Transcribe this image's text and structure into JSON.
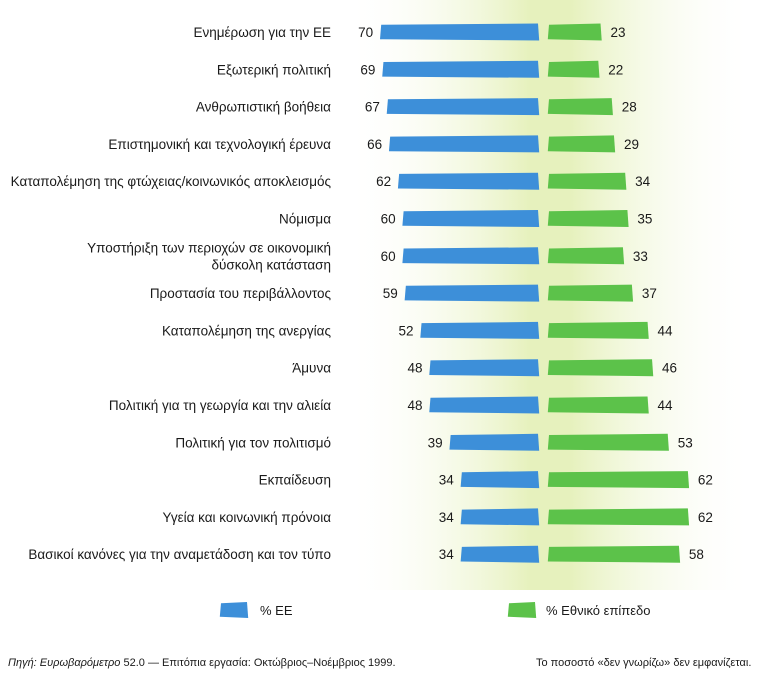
{
  "chart_data": {
    "type": "bar",
    "orientation": "horizontal",
    "layout": "diverging",
    "categories": [
      [
        "Ενημέρωση για την ΕΕ"
      ],
      [
        "Εξωτερική πολιτική"
      ],
      [
        "Ανθρωπιστική βοήθεια"
      ],
      [
        "Επιστημονική και τεχνολογική έρευνα"
      ],
      [
        "Καταπολέμηση της φτώχειας/κοινωνικός αποκλεισμός"
      ],
      [
        "Νόμισμα"
      ],
      [
        "Υποστήριξη των περιοχών σε οικονομική",
        "δύσκολη κατάσταση"
      ],
      [
        "Προστασία του περιβάλλοντος"
      ],
      [
        "Καταπολέμηση της ανεργίας"
      ],
      [
        "Άμυνα"
      ],
      [
        "Πολιτική για τη γεωργία και την αλιεία"
      ],
      [
        "Πολιτική για τον πολιτισμό"
      ],
      [
        "Εκπαίδευση"
      ],
      [
        "Υγεία και κοινωνική πρόνοια"
      ],
      [
        "Βασικοί κανόνες για την αναμετάδοση και τον τύπο"
      ]
    ],
    "series": [
      {
        "name": "% ΕΕ",
        "color": "#3d8fd9",
        "direction": "left",
        "values": [
          70,
          69,
          67,
          66,
          62,
          60,
          60,
          59,
          52,
          48,
          48,
          39,
          34,
          34,
          34
        ]
      },
      {
        "name": "% Εθνικό επίπεδο",
        "color": "#5cc24a",
        "direction": "right",
        "values": [
          23,
          22,
          28,
          29,
          34,
          35,
          33,
          37,
          44,
          46,
          44,
          53,
          62,
          62,
          58
        ]
      }
    ],
    "center_band_color": "#eaf3c6",
    "legend_position": "bottom"
  },
  "footer": {
    "source_label": "Πηγή: Ευρωβαρόμετρο",
    "source_rest": " 52.0 — Επιτόπια εργασία: Οκτώβριος–Νοέμβριος 1999.",
    "note": "Το ποσοστό «δεν γνωρίζω» δεν εμφανίζεται."
  }
}
